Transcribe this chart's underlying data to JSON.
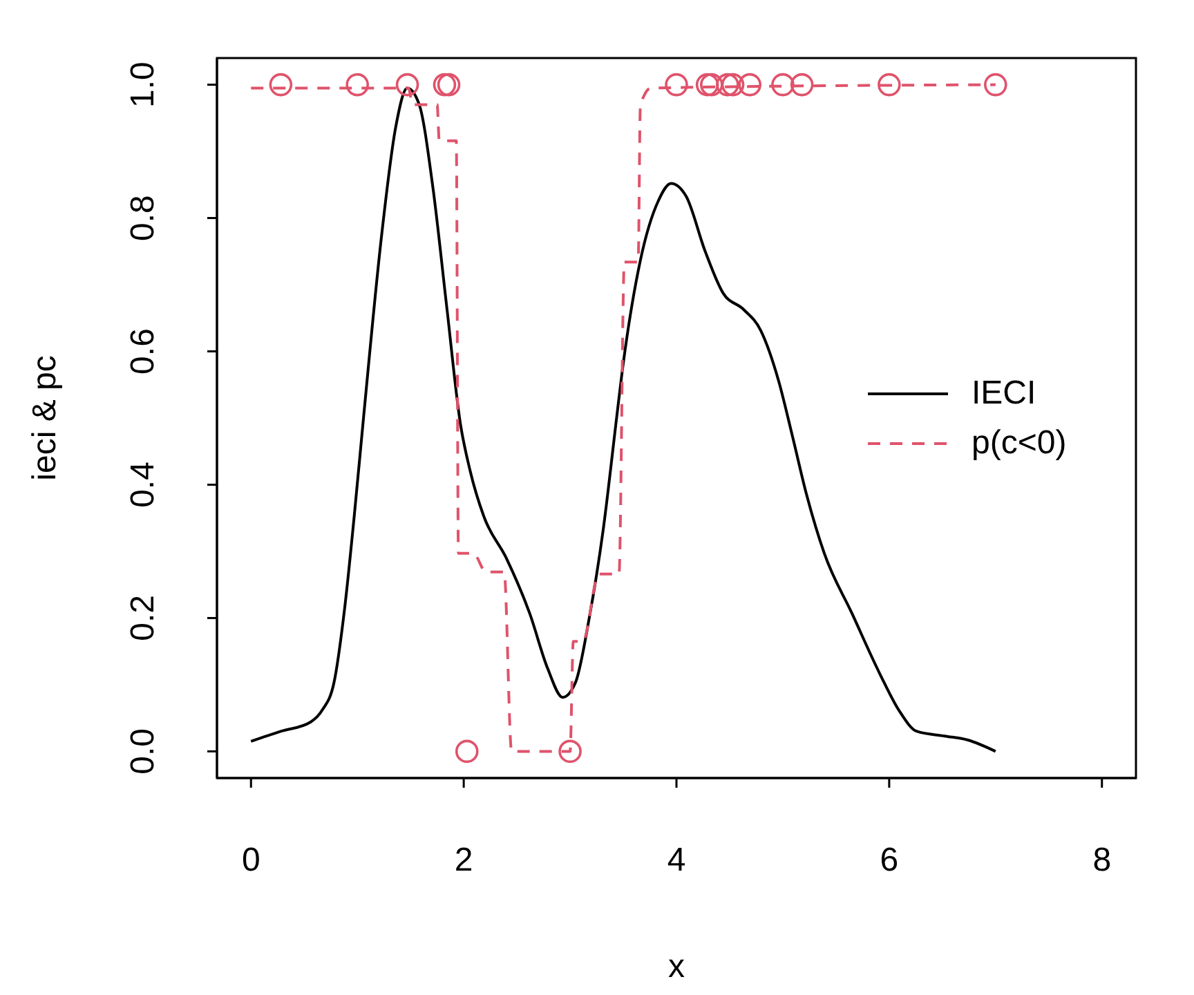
{
  "chart_data": {
    "type": "line",
    "xlabel": "x",
    "ylabel": "ieci & pc",
    "xlim": [
      -0.32,
      8.32
    ],
    "ylim": [
      -0.04,
      1.04
    ],
    "xticks": [
      0,
      2,
      4,
      6,
      8
    ],
    "yticks": [
      {
        "value": 0,
        "label": "0.0"
      },
      0.2,
      0.4,
      0.6,
      0.8,
      {
        "value": 1,
        "label": "1.0"
      }
    ],
    "legend": "right",
    "series": [
      {
        "name": "IECI",
        "type": "line",
        "color": "#000000",
        "line_style": "solid",
        "x": [
          0,
          0.28,
          0.56,
          0.67,
          0.78,
          0.88,
          0.97,
          1.06,
          1.23,
          1.36,
          1.47,
          1.58,
          1.71,
          1.84,
          1.97,
          2.06,
          2.19,
          2.4,
          2.62,
          2.79,
          2.93,
          3.05,
          3.18,
          3.31,
          3.44,
          3.49,
          3.66,
          3.83,
          3.95,
          4.09,
          4.27,
          4.44,
          4.63,
          4.79,
          4.96,
          5.09,
          5.22,
          5.39,
          5.65,
          5.91,
          6.09,
          6.26,
          6.52,
          6.74,
          7.0
        ],
        "values": [
          0.015,
          0.03,
          0.044,
          0.062,
          0.103,
          0.214,
          0.352,
          0.504,
          0.777,
          0.936,
          0.995,
          0.971,
          0.846,
          0.667,
          0.49,
          0.421,
          0.352,
          0.29,
          0.207,
          0.124,
          0.081,
          0.103,
          0.2,
          0.331,
          0.504,
          0.57,
          0.736,
          0.826,
          0.852,
          0.833,
          0.75,
          0.687,
          0.663,
          0.632,
          0.556,
          0.473,
          0.387,
          0.297,
          0.207,
          0.117,
          0.062,
          0.03,
          0.023,
          0.017,
          0.0
        ]
      },
      {
        "name": "p(c<0)",
        "type": "line",
        "color": "#df536b",
        "line_style": "dashed",
        "x": [
          0,
          1.48,
          1.52,
          1.75,
          1.77,
          1.93,
          1.95,
          2.09,
          2.21,
          2.38,
          2.45,
          3.0,
          3.03,
          3.12,
          3.27,
          3.46,
          3.51,
          3.64,
          3.66,
          3.7,
          3.76,
          7.0
        ],
        "values": [
          0.995,
          0.995,
          0.97,
          0.97,
          0.916,
          0.916,
          0.297,
          0.297,
          0.269,
          0.269,
          0,
          0,
          0.165,
          0.165,
          0.266,
          0.266,
          0.734,
          0.734,
          0.964,
          0.985,
          0.995,
          1.0
        ]
      },
      {
        "type": "scatter",
        "color": "#df536b",
        "marker": "circle",
        "x": [
          0.28,
          1.0,
          1.47,
          1.82,
          1.86,
          2.03,
          3.0,
          4.0,
          4.29,
          4.33,
          4.48,
          4.53,
          4.69,
          5.0,
          5.18,
          6.0,
          7.0
        ],
        "values": [
          1,
          1,
          1,
          1,
          1,
          0,
          0,
          1,
          1,
          1,
          1,
          1,
          1,
          1,
          1,
          1,
          1
        ]
      }
    ]
  }
}
